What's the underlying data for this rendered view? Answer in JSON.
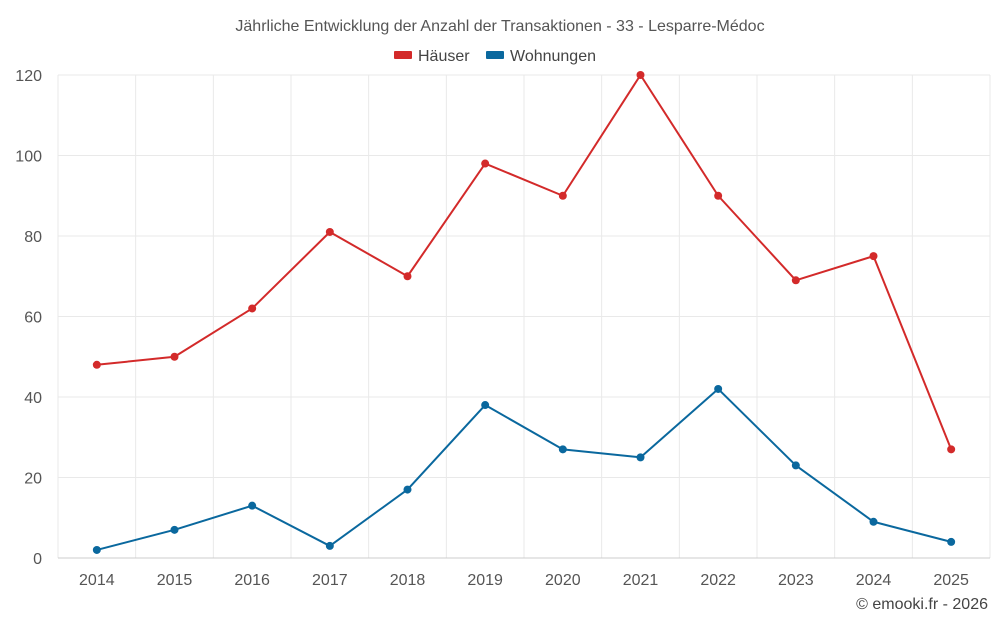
{
  "chart_data": {
    "type": "line",
    "title": "Jährliche Entwicklung der Anzahl der Transaktionen - 33 - Lesparre-Médoc",
    "categories": [
      "2014",
      "2015",
      "2016",
      "2017",
      "2018",
      "2019",
      "2020",
      "2021",
      "2022",
      "2023",
      "2024",
      "2025"
    ],
    "series": [
      {
        "name": "Häuser",
        "color": "#d32a2a",
        "values": [
          48,
          50,
          62,
          81,
          70,
          98,
          90,
          120,
          90,
          69,
          75,
          27
        ]
      },
      {
        "name": "Wohnungen",
        "color": "#0a689e",
        "values": [
          2,
          7,
          13,
          3,
          17,
          38,
          27,
          25,
          42,
          23,
          9,
          4
        ]
      }
    ],
    "xlabel": "",
    "ylabel": "",
    "ylim": [
      0,
      120
    ],
    "yticks": [
      0,
      20,
      40,
      60,
      80,
      100,
      120
    ],
    "grid": true,
    "legend": "top-center"
  },
  "footer": "© emooki.fr - 2026"
}
